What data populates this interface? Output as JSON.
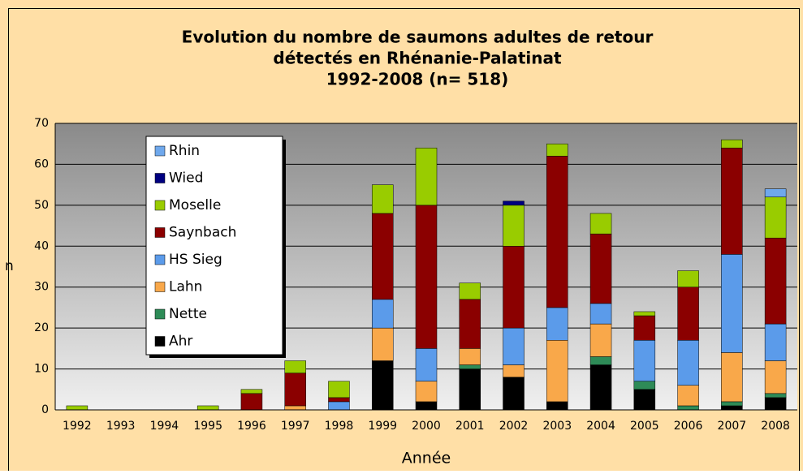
{
  "chart_data": {
    "type": "stacked_bar",
    "title": [
      "Evolution du nombre de saumons adultes de retour",
      "détectés en Rhénanie-Palatinat",
      "1992-2008 (n= 518)"
    ],
    "x_label": "Année",
    "y_label": "n",
    "categories": [
      "1992",
      "1993",
      "1994",
      "1995",
      "1996",
      "1997",
      "1998",
      "1999",
      "2000",
      "2001",
      "2002",
      "2003",
      "2004",
      "2005",
      "2006",
      "2007",
      "2008"
    ],
    "series": [
      {
        "name": "Ahr",
        "color": "#000000",
        "values": [
          0,
          0,
          0,
          0,
          0,
          0,
          0,
          12,
          2,
          10,
          8,
          2,
          11,
          5,
          0,
          1,
          3
        ]
      },
      {
        "name": "Nette",
        "color": "#2e8b57",
        "values": [
          0,
          0,
          0,
          0,
          0,
          0,
          0,
          0,
          0,
          1,
          0,
          0,
          2,
          2,
          1,
          1,
          1
        ]
      },
      {
        "name": "Lahn",
        "color": "#f9a84a",
        "values": [
          0,
          0,
          0,
          0,
          0,
          1,
          0,
          8,
          5,
          4,
          3,
          15,
          8,
          0,
          5,
          12,
          8
        ]
      },
      {
        "name": "HS Sieg",
        "color": "#5b9bea",
        "values": [
          0,
          0,
          0,
          0,
          0,
          0,
          2,
          7,
          8,
          0,
          9,
          8,
          5,
          10,
          11,
          24,
          9
        ]
      },
      {
        "name": "Saynbach",
        "color": "#8b0000",
        "values": [
          0,
          0,
          0,
          0,
          4,
          8,
          1,
          21,
          35,
          12,
          20,
          37,
          17,
          6,
          13,
          26,
          21
        ]
      },
      {
        "name": "Moselle",
        "color": "#99cc00",
        "values": [
          1,
          0,
          0,
          1,
          1,
          3,
          4,
          7,
          14,
          4,
          10,
          3,
          5,
          1,
          4,
          2,
          10
        ]
      },
      {
        "name": "Wied",
        "color": "#000080",
        "values": [
          0,
          0,
          0,
          0,
          0,
          0,
          0,
          0,
          0,
          0,
          1,
          0,
          0,
          0,
          0,
          0,
          0
        ]
      },
      {
        "name": "Rhin",
        "color": "#6fa8ec",
        "values": [
          0,
          0,
          0,
          0,
          0,
          0,
          0,
          0,
          0,
          0,
          0,
          0,
          0,
          0,
          0,
          0,
          2
        ]
      }
    ],
    "ylim": [
      0,
      70
    ],
    "yticks": [
      0,
      10,
      20,
      30,
      40,
      50,
      60,
      70
    ],
    "grid": true
  }
}
